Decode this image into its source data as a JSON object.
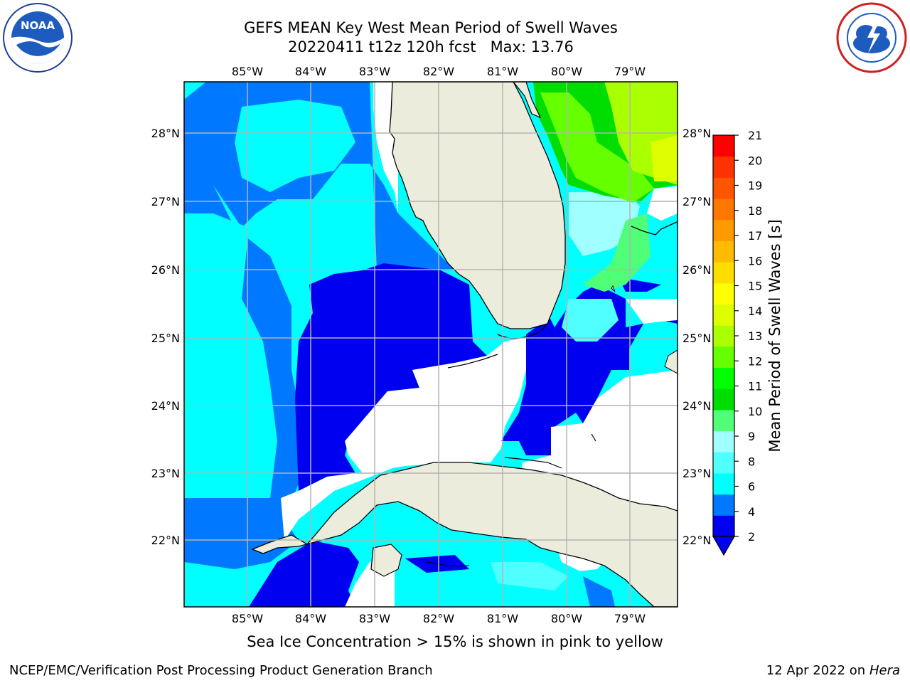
{
  "title": {
    "line1": "GEFS MEAN Key West Mean Period of Swell Waves",
    "line2": "20220411 t12z 120h fcst   Max: 13.76"
  },
  "axes": {
    "lon_labels": [
      "85°W",
      "84°W",
      "83°W",
      "82°W",
      "81°W",
      "80°W",
      "79°W"
    ],
    "lat_labels": [
      "28°N",
      "27°N",
      "26°N",
      "25°N",
      "24°N",
      "23°N",
      "22°N"
    ],
    "lon_range": [
      -86.0,
      -78.3
    ],
    "lat_range": [
      21.0,
      28.8
    ],
    "grid": true
  },
  "colorbar": {
    "label": "Mean Period of Swell Waves [s]",
    "ticks": [
      "21",
      "20",
      "19",
      "18",
      "17",
      "16",
      "15",
      "14",
      "13",
      "12",
      "11",
      "10",
      "9",
      "8",
      "6",
      "4",
      "2"
    ],
    "colors": [
      "#0000f0",
      "#0078ff",
      "#00ffff",
      "#50ffff",
      "#a0ffff",
      "#50ff78",
      "#00dd00",
      "#00ff00",
      "#66ff00",
      "#aaff00",
      "#ddff00",
      "#ffff00",
      "#ffdd00",
      "#ffbb00",
      "#ff9900",
      "#ff7700",
      "#ff5500",
      "#ff3300",
      "#ff0000"
    ],
    "extend": "min"
  },
  "logos": {
    "left": "noaa-logo",
    "right": "nws-logo"
  },
  "footer": {
    "note": "Sea Ice Concentration > 15% is shown in pink to yellow",
    "credit_left": "NCEP/EMC/Verification Post Processing Product Generation Branch",
    "credit_date": "12 Apr 2022 on ",
    "credit_machine": "Hera"
  },
  "colors": {
    "land": "#ececdc",
    "ocean_deep": "#0000f0",
    "ocean_mid": "#0078ff",
    "ocean_light": "#00ffff",
    "grid": "#b4b4b4"
  }
}
